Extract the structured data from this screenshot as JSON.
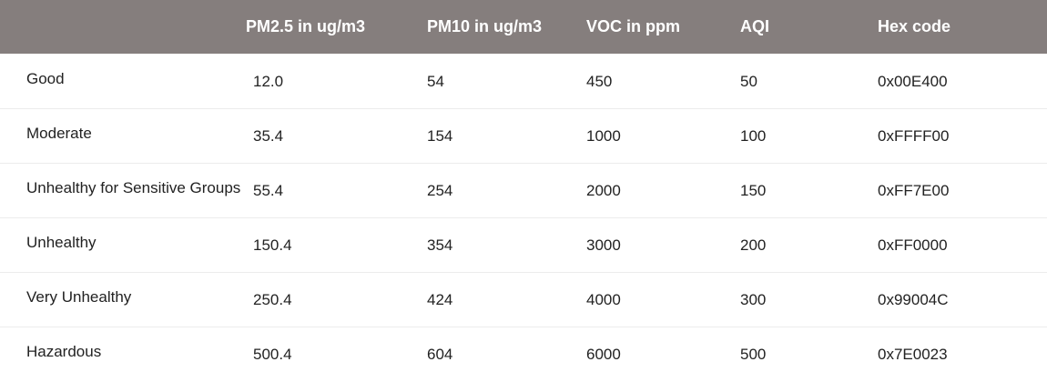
{
  "table": {
    "headers": [
      "",
      "PM2.5 in ug/m3",
      "PM10 in ug/m3",
      "VOC in ppm",
      "AQI",
      "Hex code"
    ],
    "rows": [
      {
        "category": "Good",
        "pm25": "12.0",
        "pm10": "54",
        "voc": "450",
        "aqi": "50",
        "hex": "0x00E400"
      },
      {
        "category": "Moderate",
        "pm25": "35.4",
        "pm10": "154",
        "voc": "1000",
        "aqi": "100",
        "hex": "0xFFFF00"
      },
      {
        "category": "Unhealthy for Sensitive Groups",
        "pm25": "55.4",
        "pm10": "254",
        "voc": "2000",
        "aqi": "150",
        "hex": "0xFF7E00"
      },
      {
        "category": "Unhealthy",
        "pm25": "150.4",
        "pm10": "354",
        "voc": "3000",
        "aqi": "200",
        "hex": "0xFF0000"
      },
      {
        "category": "Very Unhealthy",
        "pm25": "250.4",
        "pm10": "424",
        "voc": "4000",
        "aqi": "300",
        "hex": "0x99004C"
      },
      {
        "category": "Hazardous",
        "pm25": "500.4",
        "pm10": "604",
        "voc": "6000",
        "aqi": "500",
        "hex": "0x7E0023"
      }
    ]
  },
  "colors": {
    "header_background": "#857e7d",
    "header_text": "#ffffff",
    "row_divider": "#ececec"
  }
}
